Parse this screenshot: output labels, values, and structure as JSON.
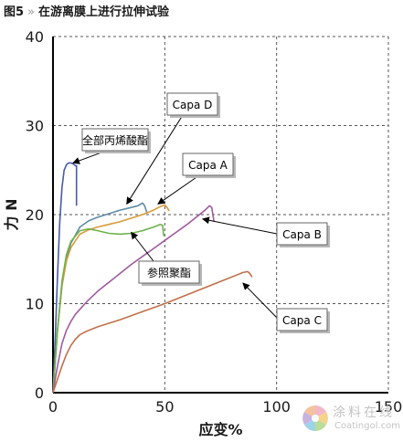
{
  "caption": {
    "fig_label": "图5",
    "separator": "»",
    "title": "在游离膜上进行拉伸试验"
  },
  "chart_data": {
    "type": "line",
    "xlabel": "应变%",
    "ylabel": "力 N",
    "xlim": [
      0,
      150
    ],
    "ylim": [
      0,
      40
    ],
    "x_ticks": [
      "0",
      "50",
      "100",
      "150"
    ],
    "y_ticks": [
      "0",
      "10",
      "20",
      "30",
      "40"
    ],
    "grid": "dashed",
    "series": [
      {
        "name": "全部丙烯酸酯",
        "color": "#4a5aa8",
        "x": [
          0,
          1,
          2,
          3,
          4,
          5,
          6,
          7,
          8,
          9,
          10,
          10.5,
          10.5
        ],
        "y": [
          0,
          6,
          13,
          19,
          23,
          25,
          25.6,
          25.8,
          25.8,
          25.7,
          25.5,
          25.5,
          21
        ]
      },
      {
        "name": "Capa D",
        "color": "#5e8ba6",
        "x": [
          0,
          2,
          4,
          6,
          8,
          12,
          16,
          20,
          25,
          30,
          35,
          38,
          40,
          41,
          42
        ],
        "y": [
          0,
          7,
          12,
          15,
          16.8,
          18.6,
          19.3,
          19.7,
          20.1,
          20.5,
          20.8,
          21.0,
          21.3,
          21.0,
          20.2
        ]
      },
      {
        "name": "Capa A",
        "color": "#d99a3a",
        "x": [
          0,
          2,
          4,
          6,
          8,
          12,
          16,
          20,
          25,
          30,
          35,
          40,
          45,
          48,
          50,
          51,
          52
        ],
        "y": [
          0,
          7,
          12,
          14.8,
          16.3,
          17.8,
          18.3,
          18.6,
          18.9,
          19.2,
          19.6,
          20.0,
          20.5,
          20.9,
          21.1,
          20.8,
          20.4
        ]
      },
      {
        "name": "参照聚酯",
        "color": "#6cb24a",
        "x": [
          0,
          2,
          4,
          6,
          8,
          12,
          16,
          20,
          25,
          30,
          35,
          40,
          45,
          48,
          49,
          49.5
        ],
        "y": [
          0,
          7,
          12.5,
          15.5,
          17,
          18.2,
          18.4,
          18.2,
          17.9,
          17.8,
          17.9,
          18.2,
          18.6,
          18.9,
          18.8,
          17.6
        ]
      },
      {
        "name": "Capa B",
        "color": "#a05aa0",
        "x": [
          0,
          2,
          4,
          6,
          8,
          10,
          15,
          20,
          25,
          30,
          35,
          40,
          45,
          50,
          55,
          60,
          65,
          68,
          70,
          71,
          72
        ],
        "y": [
          0,
          3,
          5.5,
          7,
          8,
          8.8,
          10.2,
          11.4,
          12.4,
          13.4,
          14.4,
          15.3,
          16.2,
          17.1,
          18.0,
          18.9,
          19.9,
          20.5,
          21.0,
          20.8,
          19.2
        ]
      },
      {
        "name": "Capa C",
        "color": "#c0704a",
        "x": [
          0,
          2,
          4,
          6,
          8,
          10,
          12,
          15,
          20,
          30,
          40,
          50,
          60,
          70,
          80,
          85,
          87,
          88,
          89
        ],
        "y": [
          0,
          1.5,
          3,
          4.3,
          5.3,
          6,
          6.5,
          6.9,
          7.4,
          8.2,
          9.1,
          10.0,
          11.0,
          12.0,
          13.0,
          13.5,
          13.6,
          13.4,
          13.0
        ]
      }
    ],
    "annotations": [
      {
        "text": "全部丙烯酸酯",
        "target": [
          9,
          25.8
        ]
      },
      {
        "text": "Capa D",
        "target": [
          33,
          21.2
        ]
      },
      {
        "text": "Capa A",
        "target": [
          47,
          21.2
        ]
      },
      {
        "text": "Capa B",
        "target": [
          67,
          19.5
        ]
      },
      {
        "text": "参照聚酯",
        "target": [
          35,
          18
        ]
      },
      {
        "text": "Capa C",
        "target": [
          85,
          12.3
        ]
      }
    ]
  },
  "watermark": {
    "cn": "涂料在线",
    "en": "Coatingol.com"
  }
}
